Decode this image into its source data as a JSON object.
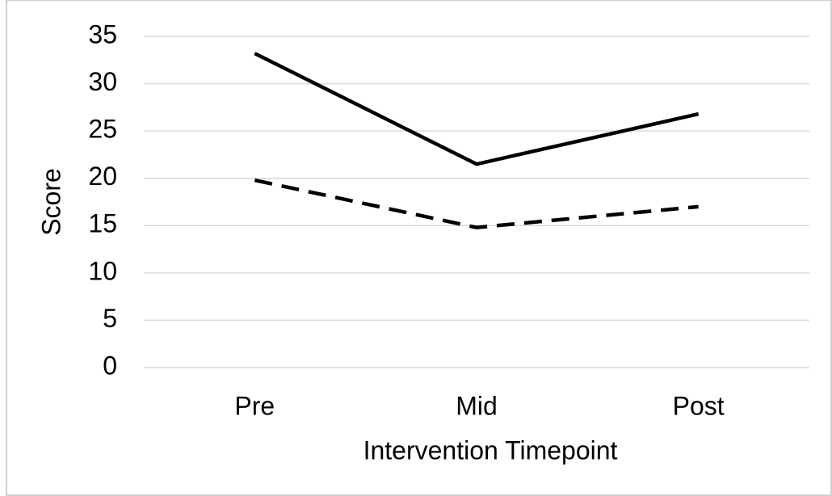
{
  "chart_data": {
    "type": "line",
    "x_label": "Intervention Timepoint",
    "y_label": "Score",
    "categories": [
      "Pre",
      "Mid",
      "Post"
    ],
    "series": [
      {
        "color": "#000000",
        "line_style": "solid",
        "values": [
          33.2,
          21.5,
          26.8
        ]
      },
      {
        "color": "#000000",
        "line_style": "dashed",
        "values": [
          19.8,
          14.8,
          17.0
        ]
      }
    ],
    "ylim": [
      0,
      35
    ],
    "yticks": [
      0,
      5,
      10,
      15,
      20,
      25,
      30,
      35
    ],
    "grid": true
  }
}
